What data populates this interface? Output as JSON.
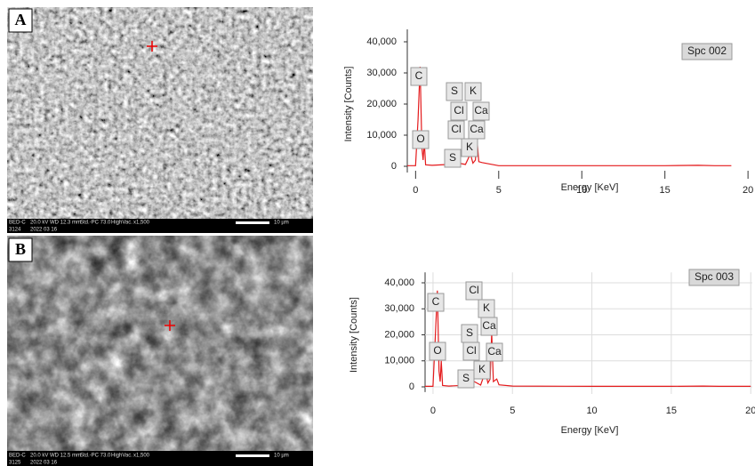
{
  "panels": [
    {
      "label": "A",
      "info": [
        "BED-C",
        "20.0 kV",
        "WD 12.3 mm",
        "Std.-PC 73.0",
        "HighVac.",
        "x1,500",
        "10 µm",
        "3124",
        "2022 03 16"
      ]
    },
    {
      "label": "B",
      "info": [
        "BED-C",
        "20.0 kV",
        "WD 12.5 mm",
        "Std.-PC 73.0",
        "HighVac.",
        "x1,500",
        "10 µm",
        "3125",
        "2022 03 16"
      ]
    }
  ],
  "chart_data": [
    {
      "type": "line",
      "title": "Spc 002",
      "x_label": "Energy [KeV]",
      "y_label": "Intensity [Counts]",
      "x": [
        -0.5,
        0,
        0.15,
        0.27,
        0.38,
        0.45,
        0.52,
        0.6,
        1,
        2,
        2.3,
        2.45,
        2.6,
        3,
        3.3,
        3.45,
        3.6,
        3.69,
        3.8,
        4,
        5,
        10,
        15,
        17,
        18,
        19
      ],
      "values": [
        200,
        200,
        15000,
        32000,
        6000,
        2000,
        8000,
        500,
        300,
        600,
        1500,
        800,
        1000,
        600,
        4000,
        1000,
        2000,
        9000,
        1500,
        1200,
        200,
        200,
        200,
        300,
        200,
        200
      ],
      "color": "#e41a1c",
      "xlim": [
        -0.5,
        20.1
      ],
      "ylim": [
        -2000,
        44000
      ],
      "xticks": [
        0,
        5,
        10,
        15,
        20
      ],
      "yticks": [
        0,
        {
          "value": 10000,
          "label": "10,000"
        },
        {
          "value": 20000,
          "label": "20,000"
        },
        {
          "value": 30000,
          "label": "30,000"
        },
        {
          "value": 40000,
          "label": "40,000"
        }
      ],
      "grid": false,
      "annotations": [
        "C",
        "S",
        "K",
        "Cl",
        "Ca",
        "Cl",
        "Ca",
        "O",
        "S",
        "K"
      ]
    },
    {
      "type": "line",
      "title": "Spc 003",
      "x_label": "Energy [KeV]",
      "y_label": "Intensity [Counts]",
      "x": [
        -0.5,
        0,
        0.15,
        0.27,
        0.38,
        0.45,
        0.52,
        0.6,
        1,
        2,
        2.3,
        2.45,
        2.6,
        3,
        3.3,
        3.45,
        3.6,
        3.69,
        3.8,
        4.01,
        4.15,
        5,
        10,
        15,
        17,
        18,
        20
      ],
      "values": [
        200,
        200,
        20000,
        37000,
        6000,
        2000,
        10000,
        500,
        300,
        600,
        1500,
        800,
        2000,
        700,
        6000,
        1500,
        3000,
        21000,
        2000,
        3000,
        800,
        300,
        200,
        200,
        300,
        200,
        200
      ],
      "color": "#e41a1c",
      "xlim": [
        -0.5,
        20.1
      ],
      "ylim": [
        -2000,
        44000
      ],
      "xticks": [
        0,
        5,
        10,
        15,
        20
      ],
      "yticks": [
        0,
        {
          "value": 10000,
          "label": "10,000"
        },
        {
          "value": 20000,
          "label": "20,000"
        },
        {
          "value": 30000,
          "label": "30,000"
        },
        {
          "value": 40000,
          "label": "40,000"
        }
      ],
      "grid": true,
      "annotations": [
        "C",
        "Cl",
        "K",
        "Ca",
        "S",
        "Cl",
        "O",
        "Ca",
        "S",
        "K"
      ]
    }
  ]
}
